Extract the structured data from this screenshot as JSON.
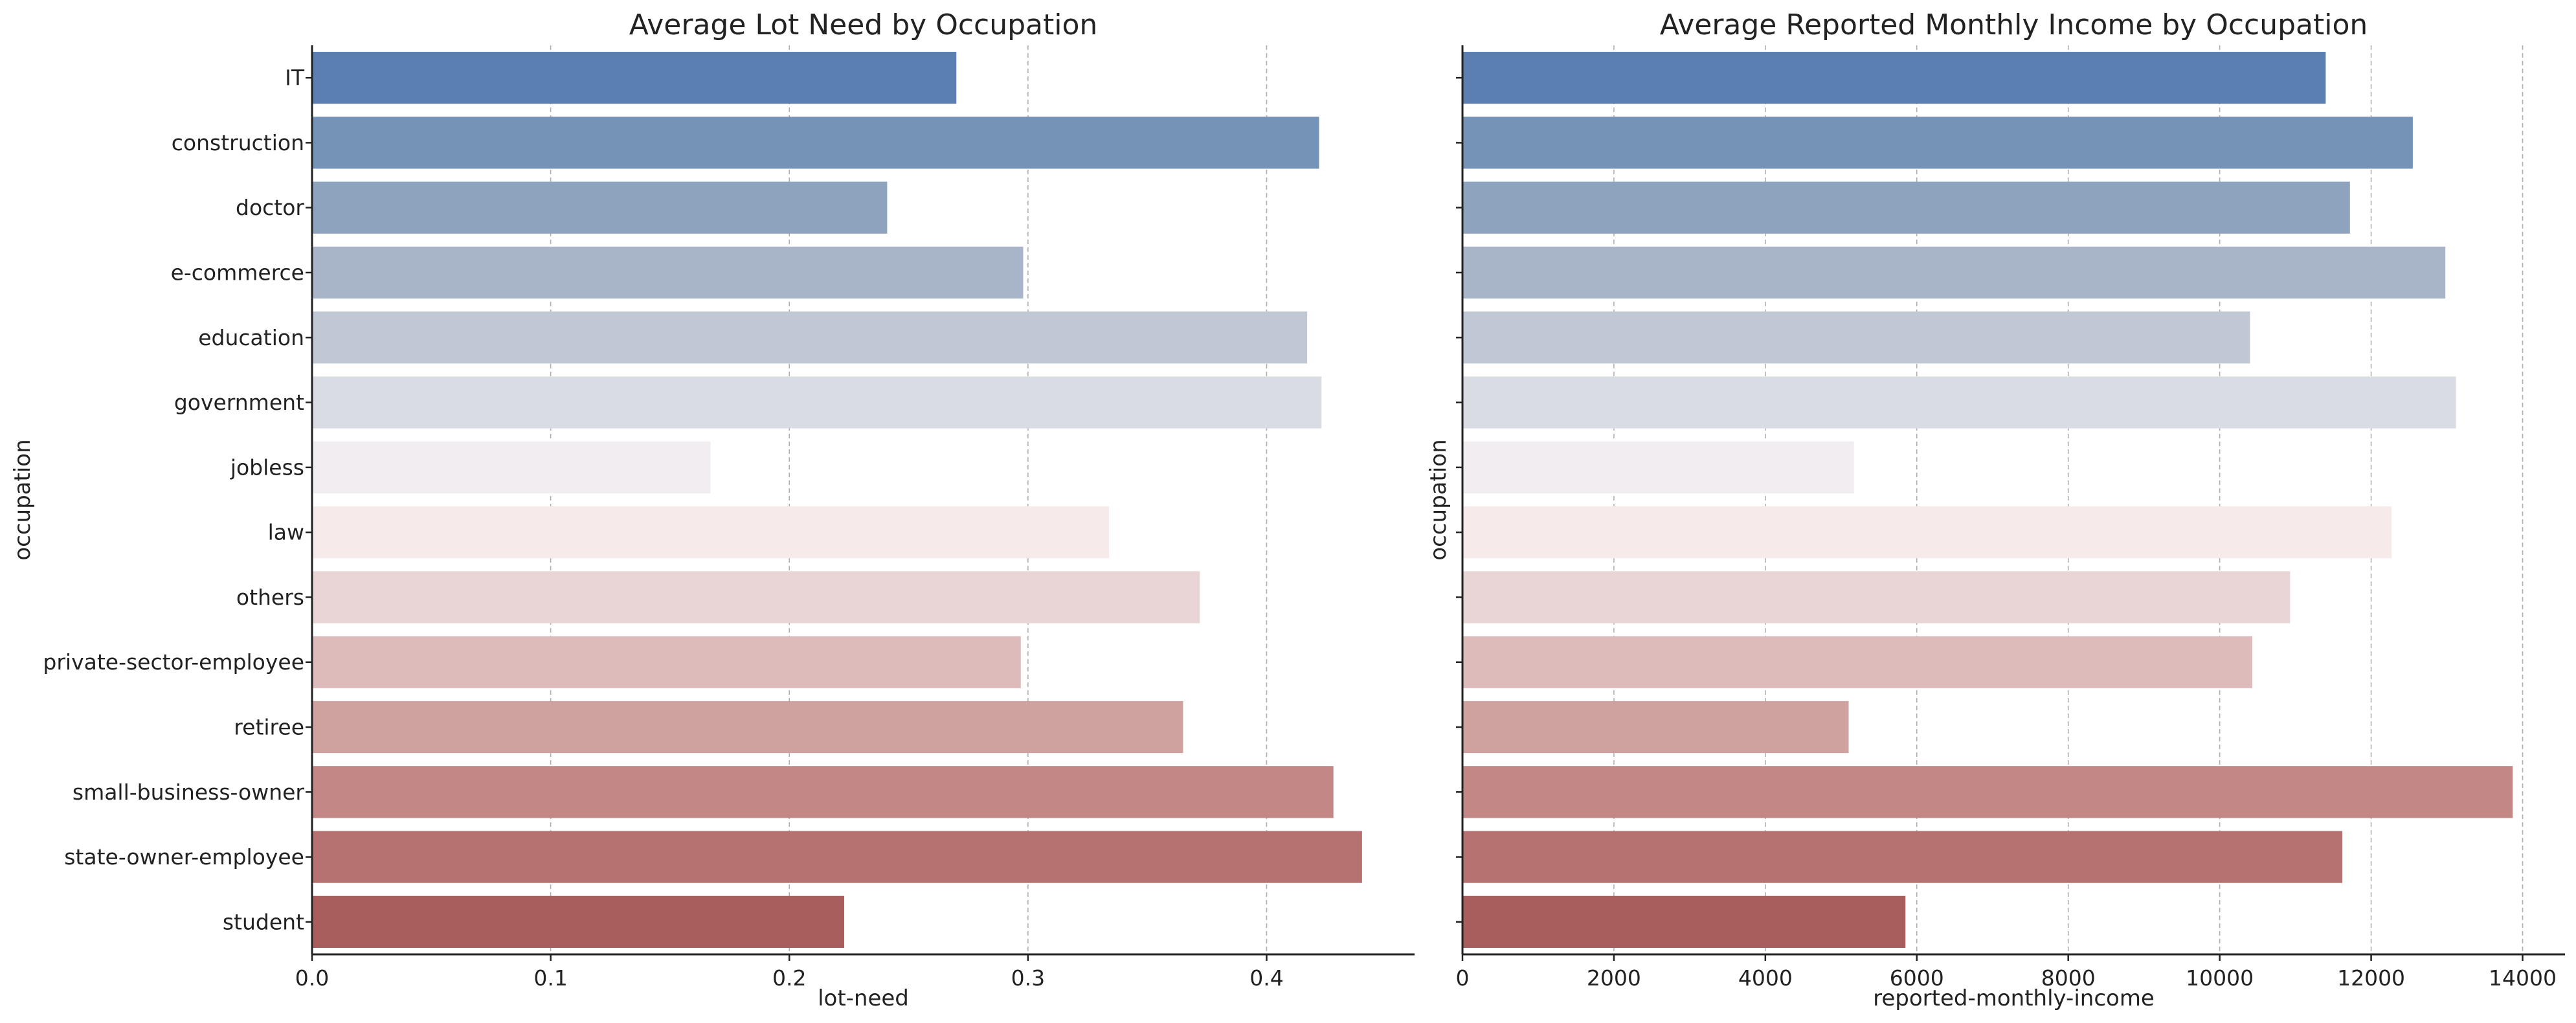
{
  "chart_data": [
    {
      "type": "bar",
      "orientation": "horizontal",
      "title": "Average Lot Need by Occupation",
      "xlabel": "lot-need",
      "ylabel": "occupation",
      "categories": [
        "IT",
        "construction",
        "doctor",
        "e-commerce",
        "education",
        "government",
        "jobless",
        "law",
        "others",
        "private-sector-employee",
        "retiree",
        "small-business-owner",
        "state-owner-employee",
        "student"
      ],
      "values": [
        0.27,
        0.422,
        0.241,
        0.298,
        0.417,
        0.423,
        0.167,
        0.334,
        0.372,
        0.297,
        0.365,
        0.428,
        0.44,
        0.223
      ],
      "xlim": [
        0,
        0.462
      ],
      "xticks": [
        "0.0",
        "0.1",
        "0.2",
        "0.3",
        "0.4"
      ],
      "xtick_values": [
        0,
        0.1,
        0.2,
        0.3,
        0.4
      ],
      "grid": "x-dashed"
    },
    {
      "type": "bar",
      "orientation": "horizontal",
      "title": "Average Reported Monthly Income by Occupation",
      "xlabel": "reported-monthly-income",
      "ylabel": "occupation",
      "categories": [
        "IT",
        "construction",
        "doctor",
        "e-commerce",
        "education",
        "government",
        "jobless",
        "law",
        "others",
        "private-sector-employee",
        "retiree",
        "small-business-owner",
        "state-owner-employee",
        "student"
      ],
      "values": [
        11400,
        12550,
        11720,
        12980,
        10400,
        13120,
        5170,
        12270,
        10930,
        10430,
        5100,
        13870,
        11620,
        5850
      ],
      "xlim": [
        0,
        14560
      ],
      "xticks": [
        "0",
        "2000",
        "4000",
        "6000",
        "8000",
        "10000",
        "12000",
        "14000"
      ],
      "xtick_values": [
        0,
        2000,
        4000,
        6000,
        8000,
        10000,
        12000,
        14000
      ],
      "grid": "x-dashed"
    }
  ],
  "colors": [
    "#5a7fb0",
    "#7592b7",
    "#8ea3be",
    "#a8b5c8",
    "#c0c7d5",
    "#d9dce3",
    "#f1edf0",
    "#f6ebea",
    "#e9d5d5",
    "#ddbbbb",
    "#d0a29f",
    "#c38885",
    "#b57270",
    "#a75e5d"
  ]
}
